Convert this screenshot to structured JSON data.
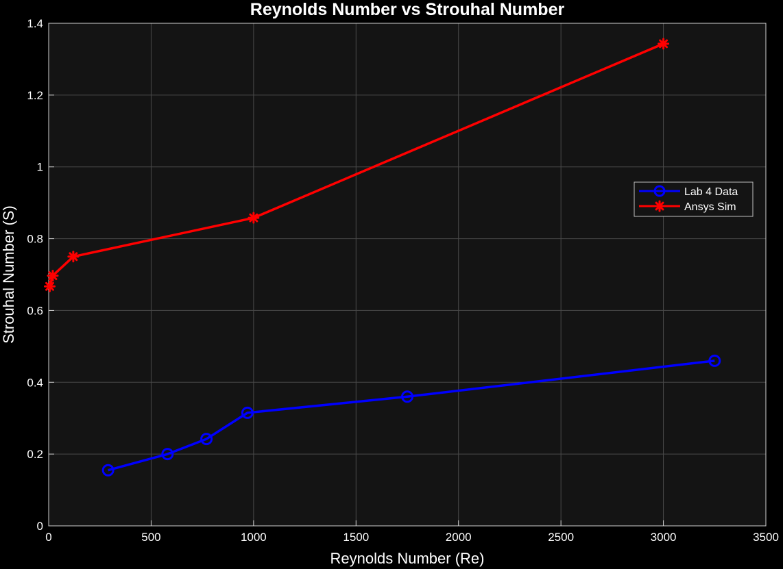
{
  "chart_data": {
    "type": "line",
    "title": "Reynolds Number vs Strouhal Number",
    "xlabel": "Reynolds Number (Re)",
    "ylabel": "Strouhal Number (S)",
    "xlim": [
      0,
      3500
    ],
    "ylim": [
      0,
      1.4
    ],
    "xticks": [
      0,
      500,
      1000,
      1500,
      2000,
      2500,
      3000,
      3500
    ],
    "yticks": [
      0,
      0.2,
      0.4,
      0.6,
      0.8,
      1,
      1.2,
      1.4
    ],
    "xtick_labels": [
      "0",
      "500",
      "1000",
      "1500",
      "2000",
      "2500",
      "3000",
      "3500"
    ],
    "ytick_labels": [
      "0",
      "0.2",
      "0.4",
      "0.6",
      "0.8",
      "1",
      "1.2",
      "1.4"
    ],
    "grid": true,
    "legend_position": "right",
    "background": "#141414",
    "series": [
      {
        "name": "Lab 4 Data",
        "color": "#0000ff",
        "marker": "circle",
        "x": [
          290,
          580,
          770,
          970,
          1750,
          3250
        ],
        "y": [
          0.155,
          0.2,
          0.242,
          0.315,
          0.36,
          0.46
        ]
      },
      {
        "name": "Ansys Sim",
        "color": "#ff0000",
        "marker": "asterisk",
        "x": [
          5,
          20,
          120,
          1000,
          3000
        ],
        "y": [
          0.667,
          0.697,
          0.75,
          0.858,
          1.343
        ]
      }
    ]
  }
}
